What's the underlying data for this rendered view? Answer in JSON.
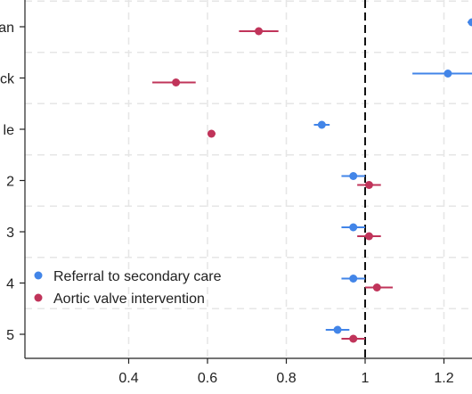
{
  "chart_data": {
    "type": "scatter",
    "subtype": "forest-plot",
    "orientation": "horizontal",
    "xlabel": "",
    "ylabel": "",
    "xlim": [
      0.0,
      1.3
    ],
    "x_ticks": [
      0.4,
      0.6,
      0.8,
      1.0,
      1.2
    ],
    "x_tick_labels": [
      "0.4",
      "0.6",
      "0.8",
      "1",
      "1.2"
    ],
    "reference_line": {
      "x": 1.0,
      "style": "dashed",
      "color": "#111111"
    },
    "grid": true,
    "legend_position": "bottom-left",
    "categories": [
      "an",
      "ck",
      "le",
      "2",
      "3",
      "4",
      "5"
    ],
    "series": [
      {
        "name": "Referral to secondary care",
        "color": "#4285e8",
        "points": [
          {
            "category": "an",
            "value": 1.3,
            "ci": [
              1.26,
              1.3
            ]
          },
          {
            "category": "ck",
            "value": 1.21,
            "ci": [
              1.12,
              1.3
            ]
          },
          {
            "category": "le",
            "value": 0.89,
            "ci": [
              0.87,
              0.91
            ]
          },
          {
            "category": "2",
            "value": 0.97,
            "ci": [
              0.94,
              1.0
            ]
          },
          {
            "category": "3",
            "value": 0.97,
            "ci": [
              0.94,
              1.0
            ]
          },
          {
            "category": "4",
            "value": 0.97,
            "ci": [
              0.94,
              1.0
            ]
          },
          {
            "category": "5",
            "value": 0.93,
            "ci": [
              0.9,
              0.96
            ]
          }
        ]
      },
      {
        "name": "Aortic valve intervention",
        "color": "#c0345a",
        "points": [
          {
            "category": "an",
            "value": 0.73,
            "ci": [
              0.68,
              0.78
            ]
          },
          {
            "category": "ck",
            "value": 0.52,
            "ci": [
              0.46,
              0.57
            ]
          },
          {
            "category": "le",
            "value": 0.61,
            "ci": [
              0.6,
              0.62
            ]
          },
          {
            "category": "2",
            "value": 1.01,
            "ci": [
              0.98,
              1.04
            ]
          },
          {
            "category": "3",
            "value": 1.01,
            "ci": [
              0.98,
              1.04
            ]
          },
          {
            "category": "4",
            "value": 1.03,
            "ci": [
              1.0,
              1.07
            ]
          },
          {
            "category": "5",
            "value": 0.97,
            "ci": [
              0.94,
              1.0
            ]
          }
        ]
      }
    ]
  }
}
